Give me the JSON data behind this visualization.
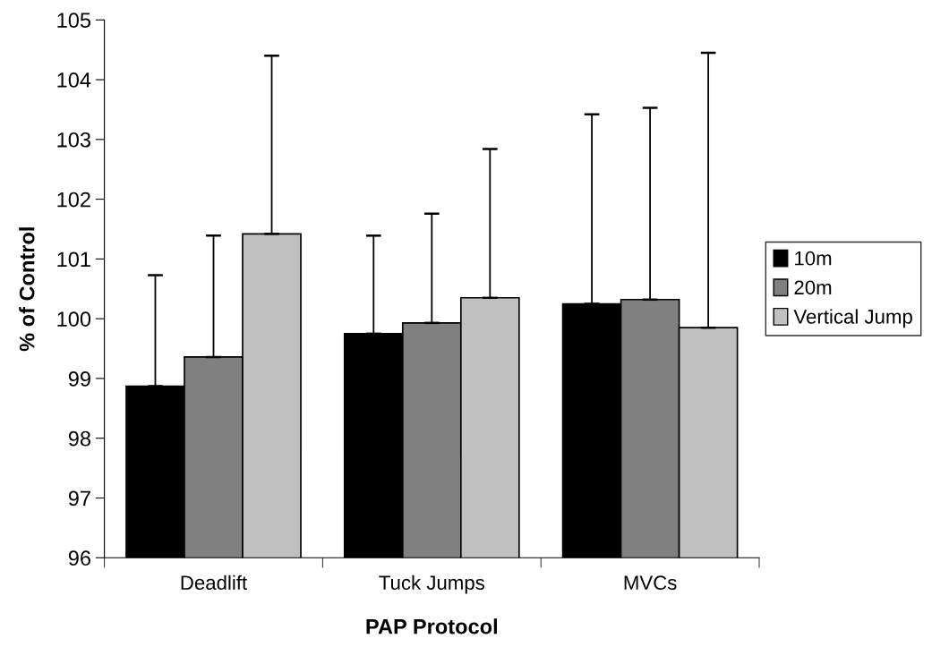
{
  "chart_data": {
    "type": "bar",
    "xlabel": "PAP Protocol",
    "ylabel": "% of Control",
    "categories": [
      "Deadlift",
      "Tuck Jumps",
      "MVCs"
    ],
    "series": [
      {
        "name": "10m",
        "color": "#000000",
        "values": [
          98.87,
          99.75,
          100.25
        ],
        "errors": [
          [
            98.87,
            100.73
          ],
          [
            99.75,
            101.39
          ],
          [
            100.25,
            103.42
          ]
        ]
      },
      {
        "name": "20m",
        "color": "#808080",
        "values": [
          99.36,
          99.93,
          100.32
        ],
        "errors": [
          [
            99.36,
            101.39
          ],
          [
            99.93,
            101.76
          ],
          [
            100.32,
            103.53
          ]
        ]
      },
      {
        "name": "Vertical Jump",
        "color": "#c0c0c0",
        "values": [
          101.42,
          100.35,
          99.85
        ],
        "errors": [
          [
            101.42,
            104.4
          ],
          [
            100.35,
            102.84
          ],
          [
            99.85,
            104.45
          ]
        ]
      }
    ],
    "ylim": [
      96,
      105
    ],
    "yticks": [
      96,
      97,
      98,
      99,
      100,
      101,
      102,
      103,
      104,
      105
    ],
    "grid": false,
    "legend": "right"
  }
}
